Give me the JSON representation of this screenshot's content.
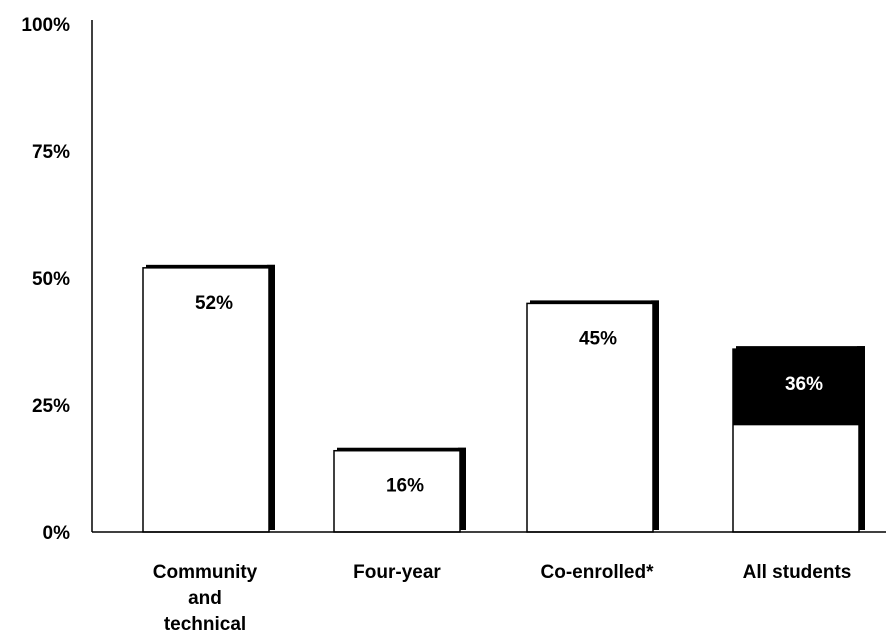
{
  "chart_data": {
    "type": "bar",
    "title": "",
    "xlabel": "",
    "ylabel": "",
    "ylim": [
      0,
      100
    ],
    "y_ticks": [
      "0%",
      "25%",
      "50%",
      "75%",
      "100%"
    ],
    "y_tick_values": [
      0,
      25,
      50,
      75,
      100
    ],
    "grid": false,
    "categories": [
      [
        "Community",
        "and",
        "technical"
      ],
      [
        "Four-year"
      ],
      [
        "Co-enrolled*"
      ],
      [
        "All students"
      ]
    ],
    "values": [
      52,
      16,
      45,
      36
    ],
    "value_labels": [
      "52%",
      "16%",
      "45%",
      "36%"
    ],
    "highlight": {
      "category_index": 3,
      "from": 21,
      "to": 36,
      "color": "#000000"
    },
    "colors": {
      "bar_fill": "#ffffff",
      "bar_stroke": "#000000",
      "shadow": "#000000",
      "axis": "#000000",
      "label_on_white": "#000000",
      "label_on_black": "#ffffff"
    }
  }
}
